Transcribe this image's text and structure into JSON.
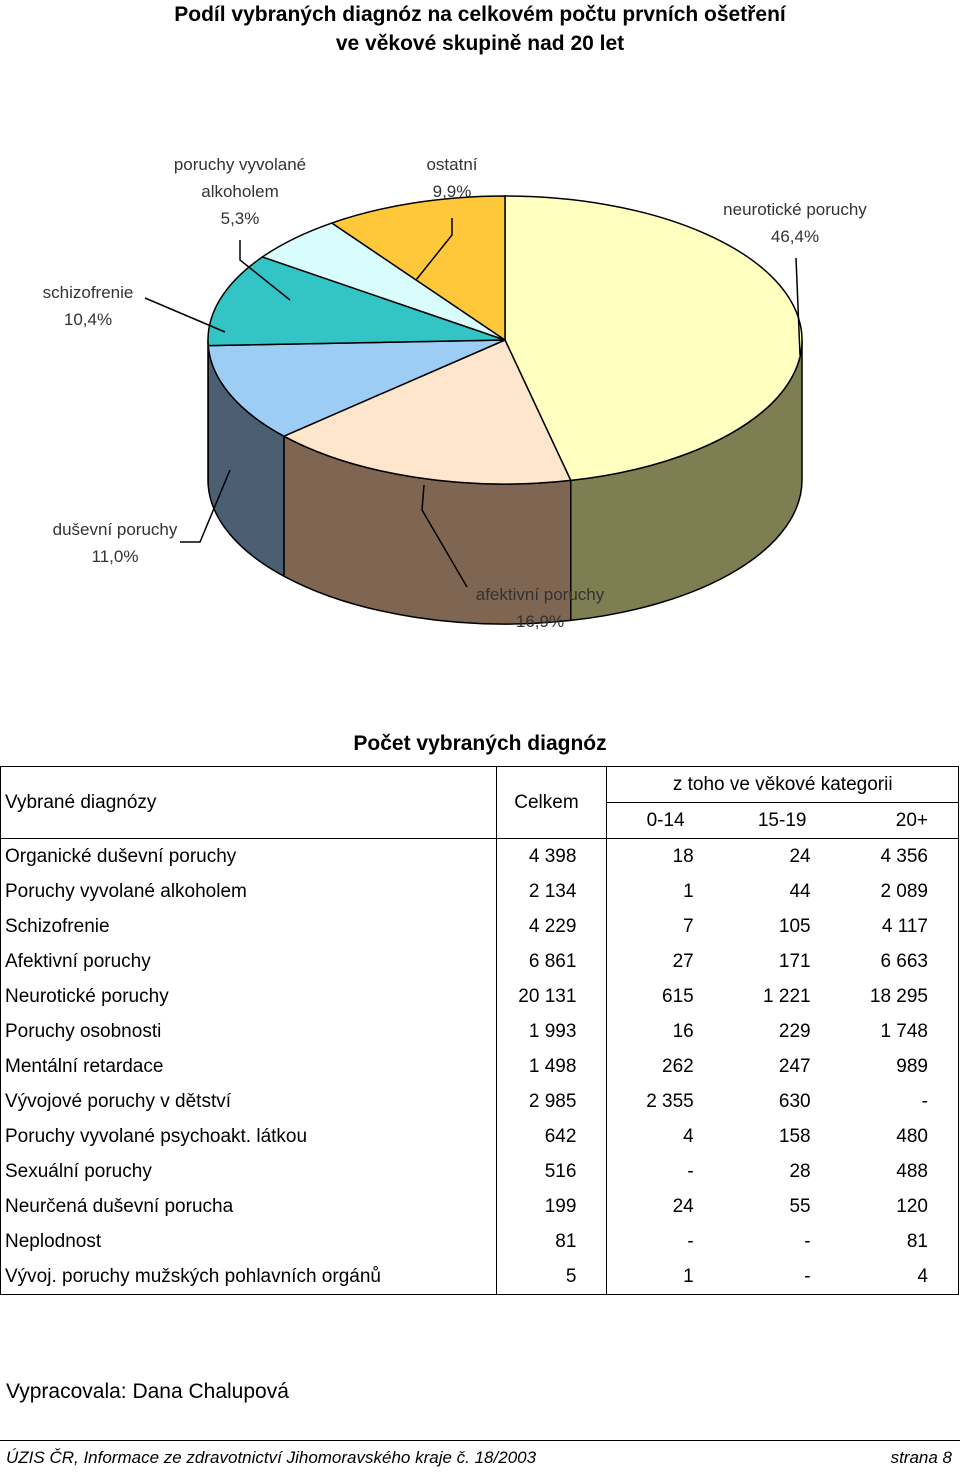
{
  "title": {
    "line1": "Podíl vybraných diagnóz na celkovém počtu prvních ošetření",
    "line2": "ve věkové skupině nad 20 let"
  },
  "chart_data": {
    "type": "pie",
    "slices": [
      {
        "name_line1": "neurotické poruchy",
        "name_line2": "",
        "value": 46.4,
        "label": "46,4%",
        "color": "#ffffc0",
        "side": "#7d7e52"
      },
      {
        "name_line1": "afektivní poruchy",
        "name_line2": "",
        "value": 16.9,
        "label": "16,9%",
        "color": "#fde6cc",
        "side": "#7f6652"
      },
      {
        "name_line1": "duševní poruchy",
        "name_line2": "",
        "value": 11.0,
        "label": "11,0%",
        "color": "#9dcdf5",
        "side": "#4b5f73"
      },
      {
        "name_line1": "schizofrenie",
        "name_line2": "",
        "value": 10.4,
        "label": "10,4%",
        "color": "#33c4c6",
        "side": "#2e6e6e"
      },
      {
        "name_line1": "poruchy vyvolané",
        "name_line2": "alkoholem",
        "value": 5.3,
        "label": "5,3%",
        "color": "#d9fcfc",
        "side": "#6a8080"
      },
      {
        "name_line1": "ostatní",
        "name_line2": "",
        "value": 9.9,
        "label": "9,9%",
        "color": "#ffc83a",
        "side": "#8a6e1e"
      }
    ]
  },
  "table": {
    "title": "Počet vybraných diagnóz",
    "head_diag": "Vybrané diagnózy",
    "head_total": "Celkem",
    "head_group": "z toho ve věkové kategorii",
    "head_ages": [
      "0-14",
      "15-19",
      "20+"
    ],
    "rows": [
      {
        "name": "Organické duševní poruchy",
        "total": "4 398",
        "a": "18",
        "b": "24",
        "c": "4 356"
      },
      {
        "name": "Poruchy vyvolané alkoholem",
        "total": "2 134",
        "a": "1",
        "b": "44",
        "c": "2 089"
      },
      {
        "name": "Schizofrenie",
        "total": "4 229",
        "a": "7",
        "b": "105",
        "c": "4 117"
      },
      {
        "name": "Afektivní poruchy",
        "total": "6 861",
        "a": "27",
        "b": "171",
        "c": "6 663"
      },
      {
        "name": "Neurotické poruchy",
        "total": "20 131",
        "a": "615",
        "b": "1 221",
        "c": "18 295"
      },
      {
        "name": "Poruchy osobnosti",
        "total": "1 993",
        "a": "16",
        "b": "229",
        "c": "1 748"
      },
      {
        "name": "Mentální retardace",
        "total": "1 498",
        "a": "262",
        "b": "247",
        "c": "989"
      },
      {
        "name": "Vývojové poruchy v dětství",
        "total": "2 985",
        "a": "2 355",
        "b": "630",
        "c": "-"
      },
      {
        "name": "Poruchy vyvolané psychoakt. látkou",
        "total": "642",
        "a": "4",
        "b": "158",
        "c": "480"
      },
      {
        "name": "Sexuální poruchy",
        "total": "516",
        "a": "-",
        "b": "28",
        "c": "488"
      },
      {
        "name": "Neurčená duševní porucha",
        "total": "199",
        "a": "24",
        "b": "55",
        "c": "120"
      },
      {
        "name": "Neplodnost",
        "total": "81",
        "a": "-",
        "b": "-",
        "c": "81"
      },
      {
        "name": "Vývoj. poruchy mužských pohlavních orgánů",
        "total": "5",
        "a": "1",
        "b": "-",
        "c": "4"
      }
    ]
  },
  "author": "Vypracovala: Dana Chalupová",
  "footer": {
    "left": "ÚZIS ČR, Informace ze zdravotnictví Jihomoravského kraje č. 18/2003",
    "right": "strana 8"
  }
}
